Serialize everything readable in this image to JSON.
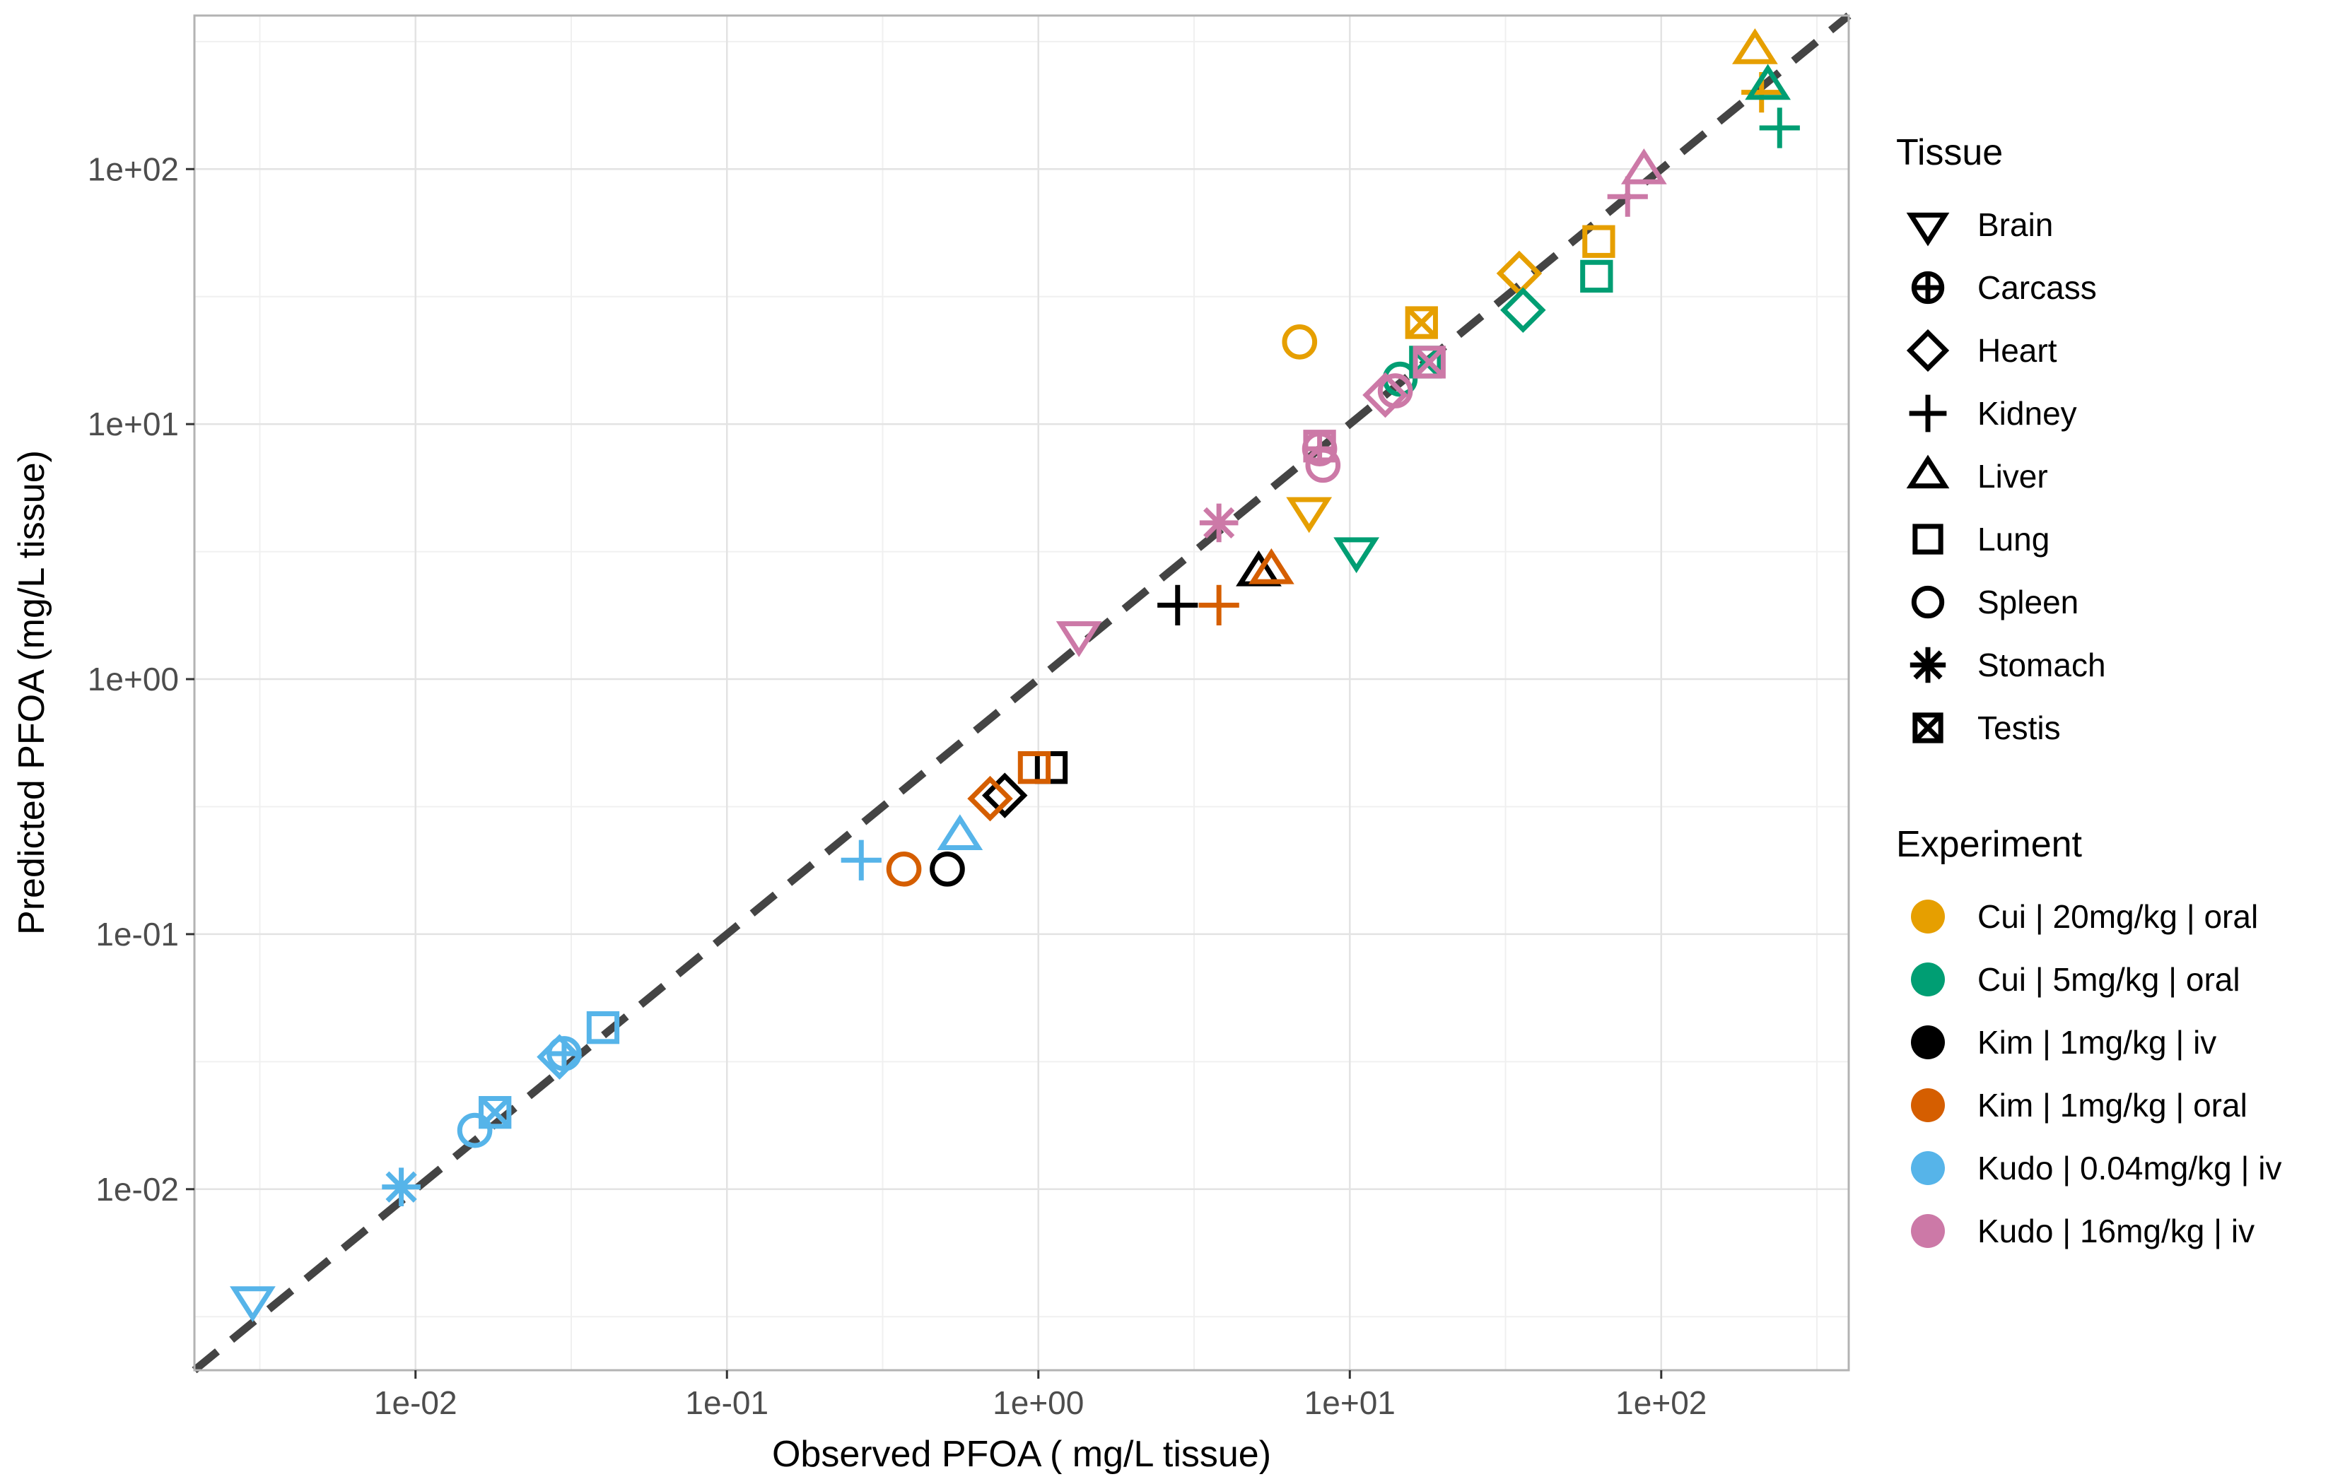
{
  "chart_data": {
    "type": "scatter",
    "xlabel": "Observed PFOA ( mg/L tissue)",
    "ylabel": "Predicted PFOA (mg/L tissue)",
    "x_scale": "log10",
    "y_scale": "log10",
    "xlim": [
      0.00195,
      400
    ],
    "ylim": [
      0.00195,
      400
    ],
    "x_ticks": [
      0.01,
      0.1,
      1,
      10,
      100
    ],
    "x_tick_labels": [
      "1e-02",
      "1e-01",
      "1e+00",
      "1e+01",
      "1e+02"
    ],
    "y_ticks": [
      0.01,
      0.1,
      1,
      10,
      100
    ],
    "y_tick_labels": [
      "1e-02",
      "1e-01",
      "1e+00",
      "1e+01",
      "1e+02"
    ],
    "grid": true,
    "reference_line": {
      "style": "dashed",
      "color": "#444444",
      "relation": "y = x"
    },
    "legend_position": "right",
    "legends": {
      "tissue": {
        "title": "Tissue",
        "entries": [
          {
            "label": "Brain",
            "shape": "triangle-down"
          },
          {
            "label": "Carcass",
            "shape": "circle-plus"
          },
          {
            "label": "Heart",
            "shape": "diamond"
          },
          {
            "label": "Kidney",
            "shape": "plus"
          },
          {
            "label": "Liver",
            "shape": "triangle-up"
          },
          {
            "label": "Lung",
            "shape": "square"
          },
          {
            "label": "Spleen",
            "shape": "circle"
          },
          {
            "label": "Stomach",
            "shape": "asterisk"
          },
          {
            "label": "Testis",
            "shape": "square-x"
          }
        ]
      },
      "experiment": {
        "title": "Experiment",
        "entries": [
          {
            "label": "Cui | 20mg/kg | oral",
            "color": "#E69F00"
          },
          {
            "label": "Cui | 5mg/kg | oral",
            "color": "#009E73"
          },
          {
            "label": "Kim | 1mg/kg | iv",
            "color": "#000000"
          },
          {
            "label": "Kim | 1mg/kg | oral",
            "color": "#D55E00"
          },
          {
            "label": "Kudo | 0.04mg/kg | iv",
            "color": "#56B4E9"
          },
          {
            "label": "Kudo | 16mg/kg | iv",
            "color": "#CC79A7"
          }
        ]
      }
    },
    "points": [
      {
        "experiment": "Cui | 20mg/kg | oral",
        "tissue": "Liver",
        "x": 200,
        "y": 290
      },
      {
        "experiment": "Cui | 20mg/kg | oral",
        "tissue": "Kidney",
        "x": 210,
        "y": 200
      },
      {
        "experiment": "Cui | 20mg/kg | oral",
        "tissue": "Lung",
        "x": 63,
        "y": 52
      },
      {
        "experiment": "Cui | 20mg/kg | oral",
        "tissue": "Heart",
        "x": 35,
        "y": 39
      },
      {
        "experiment": "Cui | 20mg/kg | oral",
        "tissue": "Testis",
        "x": 17,
        "y": 25
      },
      {
        "experiment": "Cui | 20mg/kg | oral",
        "tissue": "Spleen",
        "x": 6.9,
        "y": 21
      },
      {
        "experiment": "Cui | 20mg/kg | oral",
        "tissue": "Brain",
        "x": 7.4,
        "y": 4.6
      },
      {
        "experiment": "Cui | 5mg/kg | oral",
        "tissue": "Liver",
        "x": 220,
        "y": 210
      },
      {
        "experiment": "Cui | 5mg/kg | oral",
        "tissue": "Kidney",
        "x": 240,
        "y": 145
      },
      {
        "experiment": "Cui | 5mg/kg | oral",
        "tissue": "Lung",
        "x": 62,
        "y": 38
      },
      {
        "experiment": "Cui | 5mg/kg | oral",
        "tissue": "Heart",
        "x": 36,
        "y": 28
      },
      {
        "experiment": "Cui | 5mg/kg | oral",
        "tissue": "Testis",
        "x": 17.5,
        "y": 17.5
      },
      {
        "experiment": "Cui | 5mg/kg | oral",
        "tissue": "Spleen",
        "x": 14.5,
        "y": 15
      },
      {
        "experiment": "Cui | 5mg/kg | oral",
        "tissue": "Brain",
        "x": 10.5,
        "y": 3.2
      },
      {
        "experiment": "Kim | 1mg/kg | iv",
        "tissue": "Liver",
        "x": 5.1,
        "y": 2.6
      },
      {
        "experiment": "Kim | 1mg/kg | iv",
        "tissue": "Kidney",
        "x": 2.8,
        "y": 1.95
      },
      {
        "experiment": "Kim | 1mg/kg | iv",
        "tissue": "Lung",
        "x": 1.1,
        "y": 0.45
      },
      {
        "experiment": "Kim | 1mg/kg | iv",
        "tissue": "Heart",
        "x": 0.78,
        "y": 0.35
      },
      {
        "experiment": "Kim | 1mg/kg | iv",
        "tissue": "Spleen",
        "x": 0.51,
        "y": 0.18
      },
      {
        "experiment": "Kim | 1mg/kg | oral",
        "tissue": "Liver",
        "x": 5.6,
        "y": 2.65
      },
      {
        "experiment": "Kim | 1mg/kg | oral",
        "tissue": "Kidney",
        "x": 3.8,
        "y": 1.95
      },
      {
        "experiment": "Kim | 1mg/kg | oral",
        "tissue": "Lung",
        "x": 0.97,
        "y": 0.45
      },
      {
        "experiment": "Kim | 1mg/kg | oral",
        "tissue": "Heart",
        "x": 0.7,
        "y": 0.34
      },
      {
        "experiment": "Kim | 1mg/kg | oral",
        "tissue": "Spleen",
        "x": 0.37,
        "y": 0.18
      },
      {
        "experiment": "Kudo | 0.04mg/kg | iv",
        "tissue": "Liver",
        "x": 0.56,
        "y": 0.24
      },
      {
        "experiment": "Kudo | 0.04mg/kg | iv",
        "tissue": "Kidney",
        "x": 0.27,
        "y": 0.195
      },
      {
        "experiment": "Kudo | 0.04mg/kg | iv",
        "tissue": "Lung",
        "x": 0.04,
        "y": 0.043
      },
      {
        "experiment": "Kudo | 0.04mg/kg | iv",
        "tissue": "Heart",
        "x": 0.029,
        "y": 0.033
      },
      {
        "experiment": "Kudo | 0.04mg/kg | iv",
        "tissue": "Carcass",
        "x": 0.03,
        "y": 0.034
      },
      {
        "experiment": "Kudo | 0.04mg/kg | iv",
        "tissue": "Testis",
        "x": 0.018,
        "y": 0.02
      },
      {
        "experiment": "Kudo | 0.04mg/kg | iv",
        "tissue": "Spleen",
        "x": 0.0155,
        "y": 0.017
      },
      {
        "experiment": "Kudo | 0.04mg/kg | iv",
        "tissue": "Stomach",
        "x": 0.009,
        "y": 0.0102
      },
      {
        "experiment": "Kudo | 0.04mg/kg | iv",
        "tissue": "Brain",
        "x": 0.003,
        "y": 0.0037
      },
      {
        "experiment": "Kudo | 16mg/kg | iv",
        "tissue": "Liver",
        "x": 88,
        "y": 98
      },
      {
        "experiment": "Kudo | 16mg/kg | iv",
        "tissue": "Kidney",
        "x": 78,
        "y": 78
      },
      {
        "experiment": "Kudo | 16mg/kg | iv",
        "tissue": "Testis",
        "x": 18,
        "y": 17.5
      },
      {
        "experiment": "Kudo | 16mg/kg | iv",
        "tissue": "Heart",
        "x": 13,
        "y": 13
      },
      {
        "experiment": "Kudo | 16mg/kg | iv",
        "tissue": "Spleen",
        "x": 14,
        "y": 13.5
      },
      {
        "experiment": "Kudo | 16mg/kg | iv",
        "tissue": "Lung",
        "x": 8,
        "y": 8.2
      },
      {
        "experiment": "Kudo | 16mg/kg | iv",
        "tissue": "Carcass",
        "x": 8,
        "y": 8
      },
      {
        "experiment": "Kudo | 16mg/kg | iv",
        "tissue": "Spleen",
        "x": 8.2,
        "y": 6.9
      },
      {
        "experiment": "Kudo | 16mg/kg | iv",
        "tissue": "Stomach",
        "x": 3.8,
        "y": 4.1
      },
      {
        "experiment": "Kudo | 16mg/kg | iv",
        "tissue": "Brain",
        "x": 1.35,
        "y": 1.5
      }
    ]
  }
}
